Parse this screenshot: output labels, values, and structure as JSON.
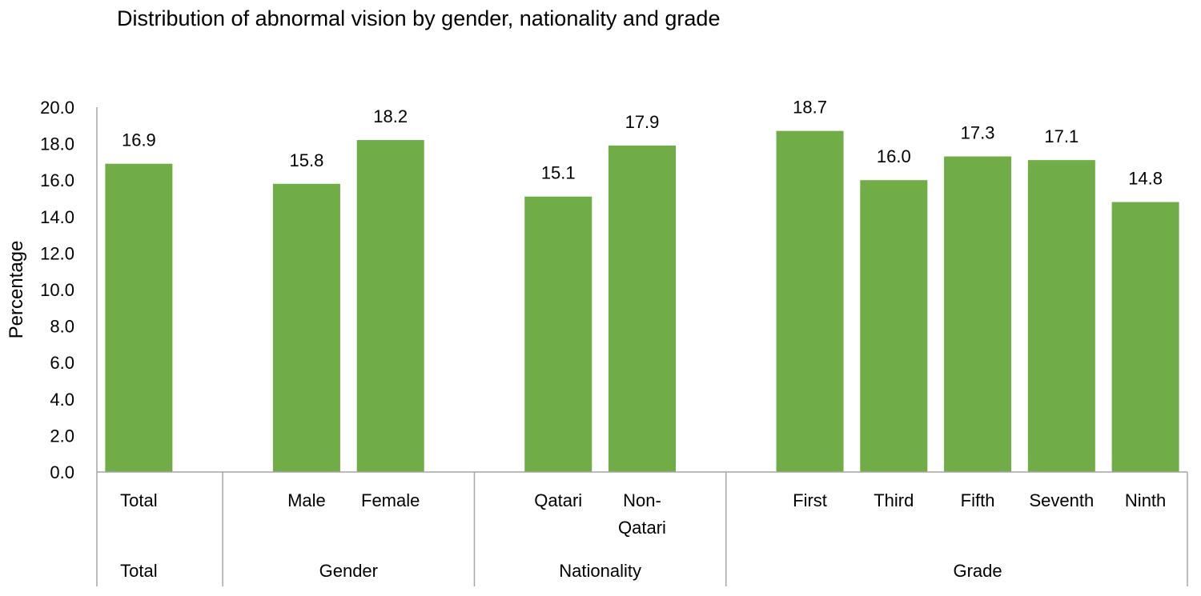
{
  "chart_data": {
    "type": "bar",
    "title": "Distribution of abnormal vision by gender, nationality and grade",
    "ylabel": "Percentage",
    "xlabel": "",
    "ylim": [
      0,
      20
    ],
    "ytick_step": 2,
    "ytick_labels": [
      "0.0",
      "2.0",
      "4.0",
      "6.0",
      "8.0",
      "10.0",
      "12.0",
      "14.0",
      "16.0",
      "18.0",
      "20.0"
    ],
    "grid": false,
    "bar_color": "#70AD47",
    "groups": [
      {
        "label": "Total",
        "categories": [
          {
            "label": [
              "Total"
            ],
            "value": 16.9,
            "value_label": "16.9"
          }
        ]
      },
      {
        "label": "Gender",
        "categories": [
          {
            "label": [
              "Male"
            ],
            "value": 15.8,
            "value_label": "15.8"
          },
          {
            "label": [
              "Female"
            ],
            "value": 18.2,
            "value_label": "18.2"
          }
        ]
      },
      {
        "label": "Nationality",
        "categories": [
          {
            "label": [
              "Qatari"
            ],
            "value": 15.1,
            "value_label": "15.1"
          },
          {
            "label": [
              "Non-",
              "Qatari"
            ],
            "value": 17.9,
            "value_label": "17.9"
          }
        ]
      },
      {
        "label": "Grade",
        "categories": [
          {
            "label": [
              "First"
            ],
            "value": 18.7,
            "value_label": "18.7"
          },
          {
            "label": [
              "Third"
            ],
            "value": 16.0,
            "value_label": "16.0"
          },
          {
            "label": [
              "Fifth"
            ],
            "value": 17.3,
            "value_label": "17.3"
          },
          {
            "label": [
              "Seventh"
            ],
            "value": 17.1,
            "value_label": "17.1"
          },
          {
            "label": [
              "Ninth"
            ],
            "value": 14.8,
            "value_label": "14.8"
          }
        ]
      }
    ]
  }
}
